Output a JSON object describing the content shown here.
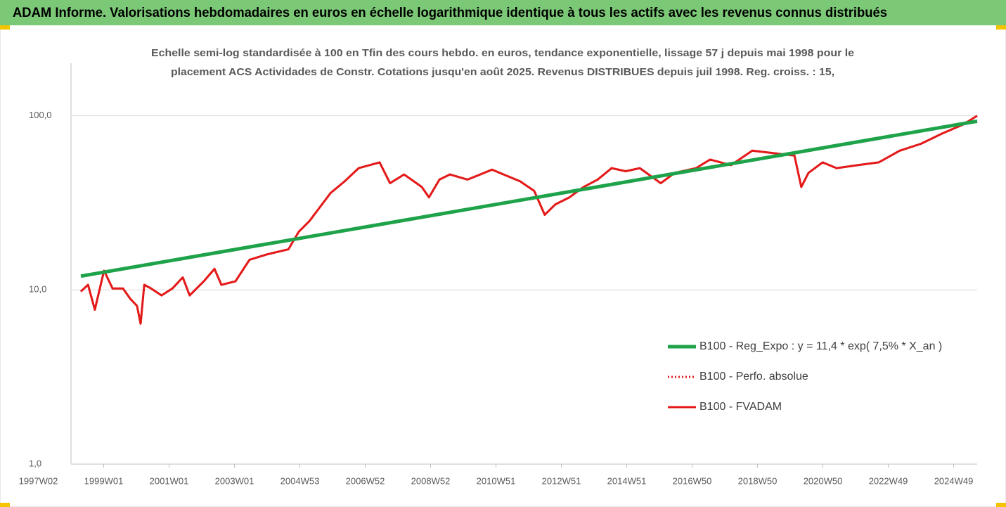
{
  "chart_data": {
    "type": "line",
    "title": "ADAM Informe. Valorisations hebdomadaires en euros en échelle logarithmique identique à tous les actifs avec les revenus connus distribués",
    "subtitle": [
      "Echelle semi-log standardisée à 100 en Tfin des cours hebdo. en euros, tendance exponentielle, lissage 57 j depuis mai 1998 pour le",
      "placement ACS Actividades de Constr. Cotations jusqu'en août 2025.  Revenus DISTRIBUES depuis juil 1998. Reg. croiss. : 15,"
    ],
    "log_y": true,
    "grid": true,
    "legend": "right",
    "xlim": [
      1998.0,
      2025.72
    ],
    "xticks": [
      {
        "value": 1997.0,
        "label": "1997W02"
      },
      {
        "value": 1999.0,
        "label": "1999W01"
      },
      {
        "value": 2001.0,
        "label": "2001W01"
      },
      {
        "value": 2003.0,
        "label": "2003W01"
      },
      {
        "value": 2005.0,
        "label": "2004W53"
      },
      {
        "value": 2007.0,
        "label": "2006W52"
      },
      {
        "value": 2009.0,
        "label": "2008W52"
      },
      {
        "value": 2011.0,
        "label": "2010W51"
      },
      {
        "value": 2013.0,
        "label": "2012W51"
      },
      {
        "value": 2015.0,
        "label": "2014W51"
      },
      {
        "value": 2017.0,
        "label": "2016W50"
      },
      {
        "value": 2019.0,
        "label": "2018W50"
      },
      {
        "value": 2021.0,
        "label": "2020W50"
      },
      {
        "value": 2023.0,
        "label": "2022W49"
      },
      {
        "value": 2025.0,
        "label": "2024W49"
      }
    ],
    "ylim": [
      1,
      200
    ],
    "yticks": [
      {
        "value": 1,
        "label": "1,0"
      },
      {
        "value": 10,
        "label": "10,0"
      },
      {
        "value": 100,
        "label": "100,0"
      }
    ],
    "series": [
      {
        "name": "B100 - Reg_Expo : y = 11,4 * exp( 7,5% *  X_an )",
        "color": "#1ea34a",
        "style": "solid",
        "width": 5,
        "x": [
          1998.3,
          2025.72
        ],
        "values": [
          12,
          93
        ]
      },
      {
        "name": "B100 - Perfo. absolue",
        "color": "#e41a1a",
        "style": "dotted",
        "width": 3,
        "x": [
          1998.3,
          1998.52,
          1998.73,
          1999.01,
          1999.27,
          1999.59,
          1999.81,
          2000.02,
          2000.13,
          2000.24,
          2000.45,
          2000.77,
          2001.1,
          2001.42,
          2001.63,
          2002.06,
          2002.39,
          2002.6,
          2003.03,
          2003.46,
          2004.0,
          2004.65,
          2004.97,
          2005.29,
          2005.94,
          2006.37,
          2006.8,
          2007.44,
          2007.76,
          2008.19,
          2008.73,
          2008.95,
          2009.27,
          2009.59,
          2010.13,
          2010.88,
          2011.74,
          2012.17,
          2012.49,
          2012.82,
          2013.25,
          2013.68,
          2014.11,
          2014.54,
          2014.97,
          2015.4,
          2016.04,
          2016.47,
          2017.12,
          2017.55,
          2018.19,
          2018.84,
          2019.48,
          2020.13,
          2020.34,
          2020.56,
          2020.99,
          2021.42,
          2022.06,
          2022.71,
          2023.35,
          2024.0,
          2024.65,
          2025.29,
          2025.72
        ],
        "values": [
          9.8,
          10.7,
          7.7,
          12.9,
          10.2,
          10.2,
          8.9,
          8.1,
          6.4,
          10.7,
          10.2,
          9.3,
          10.2,
          11.8,
          9.3,
          11.2,
          13.2,
          10.7,
          11.2,
          14.9,
          16.0,
          17.1,
          21.6,
          24.8,
          36,
          42,
          50,
          54,
          41,
          46,
          39,
          34,
          43,
          46,
          43,
          49,
          42,
          37,
          27,
          31,
          34,
          39,
          43,
          50,
          48,
          50,
          41,
          47,
          50,
          56,
          52,
          63,
          61,
          59,
          39,
          47,
          54,
          50,
          52,
          54,
          63,
          69,
          79,
          89,
          100
        ]
      },
      {
        "name": "B100 - FVADAM",
        "color": "#e41a1a",
        "style": "solid",
        "width": 3,
        "x": [
          1998.3,
          1998.52,
          1998.73,
          1999.01,
          1999.27,
          1999.59,
          1999.81,
          2000.02,
          2000.13,
          2000.24,
          2000.45,
          2000.77,
          2001.1,
          2001.42,
          2001.63,
          2002.06,
          2002.39,
          2002.6,
          2003.03,
          2003.46,
          2004.0,
          2004.65,
          2004.97,
          2005.29,
          2005.94,
          2006.37,
          2006.8,
          2007.44,
          2007.76,
          2008.19,
          2008.73,
          2008.95,
          2009.27,
          2009.59,
          2010.13,
          2010.88,
          2011.74,
          2012.17,
          2012.49,
          2012.82,
          2013.25,
          2013.68,
          2014.11,
          2014.54,
          2014.97,
          2015.4,
          2016.04,
          2016.47,
          2017.12,
          2017.55,
          2018.19,
          2018.84,
          2019.48,
          2020.13,
          2020.34,
          2020.56,
          2020.99,
          2021.42,
          2022.06,
          2022.71,
          2023.35,
          2024.0,
          2024.65,
          2025.29,
          2025.72
        ],
        "values": [
          9.8,
          10.7,
          7.7,
          12.9,
          10.2,
          10.2,
          8.9,
          8.1,
          6.4,
          10.7,
          10.2,
          9.3,
          10.2,
          11.8,
          9.3,
          11.2,
          13.2,
          10.7,
          11.2,
          14.9,
          16.0,
          17.1,
          21.6,
          24.8,
          36,
          42,
          50,
          54,
          41,
          46,
          39,
          34,
          43,
          46,
          43,
          49,
          42,
          37,
          27,
          31,
          34,
          39,
          43,
          50,
          48,
          50,
          41,
          47,
          50,
          56,
          52,
          63,
          61,
          59,
          39,
          47,
          54,
          50,
          52,
          54,
          63,
          69,
          79,
          89,
          100
        ]
      }
    ]
  }
}
